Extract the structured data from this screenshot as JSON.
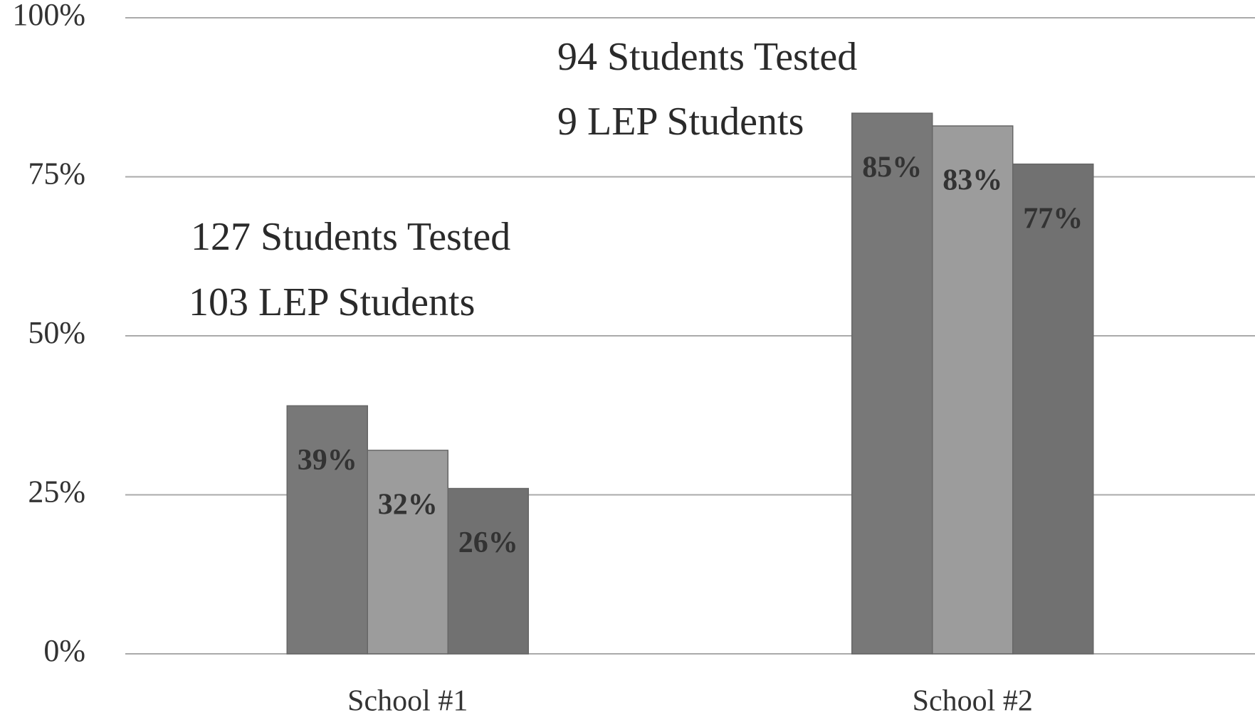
{
  "chart_data": {
    "type": "bar",
    "categories": [
      "School #1",
      "School #2"
    ],
    "series": [
      {
        "color": "#787878",
        "values": [
          39,
          85
        ],
        "value_labels": [
          "39%",
          "85%"
        ]
      },
      {
        "color": "#9c9c9c",
        "values": [
          32,
          83
        ],
        "value_labels": [
          "32%",
          "83%"
        ]
      },
      {
        "color": "#717171",
        "values": [
          26,
          77
        ],
        "value_labels": [
          "26%",
          "77%"
        ]
      }
    ],
    "annotations": [
      "127 Students Tested",
      "103 LEP Students",
      "94 Students Tested",
      "9 LEP Students"
    ],
    "ylim": [
      0,
      100
    ],
    "yticks": [
      {
        "value": 0,
        "label": "0%"
      },
      {
        "value": 25,
        "label": "25%"
      },
      {
        "value": 50,
        "label": "50%"
      },
      {
        "value": 75,
        "label": "75%"
      },
      {
        "value": 100,
        "label": "100%"
      }
    ],
    "grid": true
  }
}
